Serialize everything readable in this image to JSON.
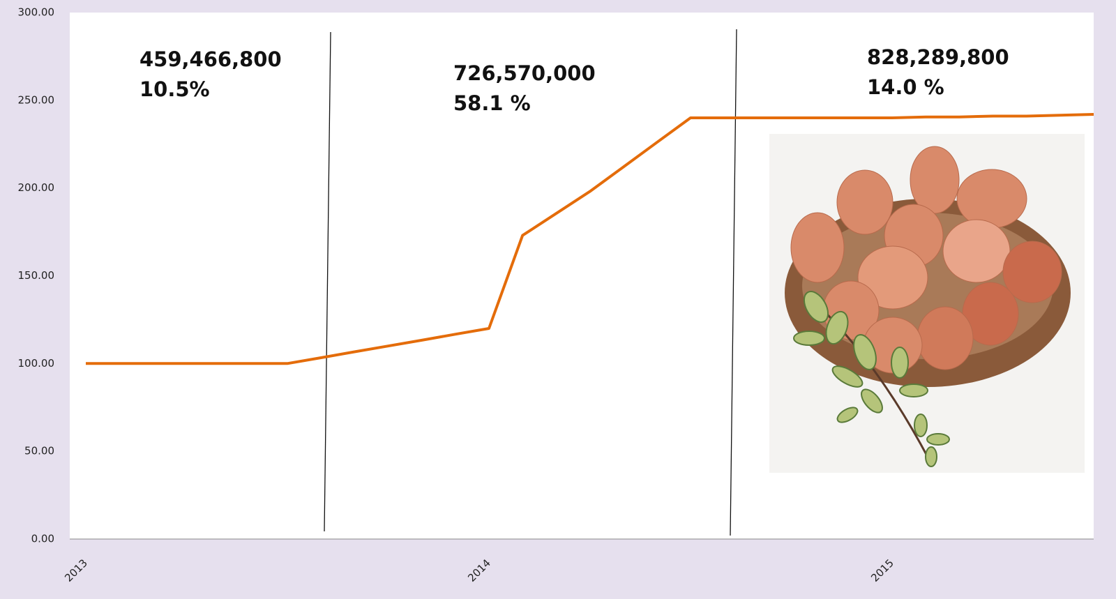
{
  "chart_data": {
    "type": "line",
    "categories": [
      "2013",
      null,
      null,
      null,
      null,
      null,
      null,
      null,
      null,
      null,
      null,
      null,
      "2014",
      null,
      null,
      null,
      null,
      null,
      null,
      null,
      null,
      null,
      null,
      null,
      "2015",
      null,
      null,
      null,
      null,
      null,
      null
    ],
    "values": [
      100,
      100,
      100,
      100,
      100,
      100,
      100,
      103.3,
      106.7,
      110,
      113.3,
      116.7,
      120,
      173,
      185.5,
      198,
      212,
      226,
      240,
      240,
      240,
      240,
      240,
      240,
      240,
      240.5,
      240.5,
      241,
      241,
      241.5,
      242
    ],
    "color": "#e46c0a",
    "ylim": [
      0,
      300
    ],
    "yticks": [
      {
        "value": 0,
        "label": "0.00"
      },
      {
        "value": 50,
        "label": "50.00"
      },
      {
        "value": 100,
        "label": "100.00"
      },
      {
        "value": 150,
        "label": "150.00"
      },
      {
        "value": 200,
        "label": "200.00"
      },
      {
        "value": 250,
        "label": "250.00"
      },
      {
        "value": 300,
        "label": "300.00"
      }
    ],
    "annotations": [
      [
        "459,466,800",
        "10.5%"
      ],
      [
        "726,570,000",
        "58.1 %"
      ],
      [
        "828,289,800",
        "14.0 %"
      ]
    ]
  }
}
